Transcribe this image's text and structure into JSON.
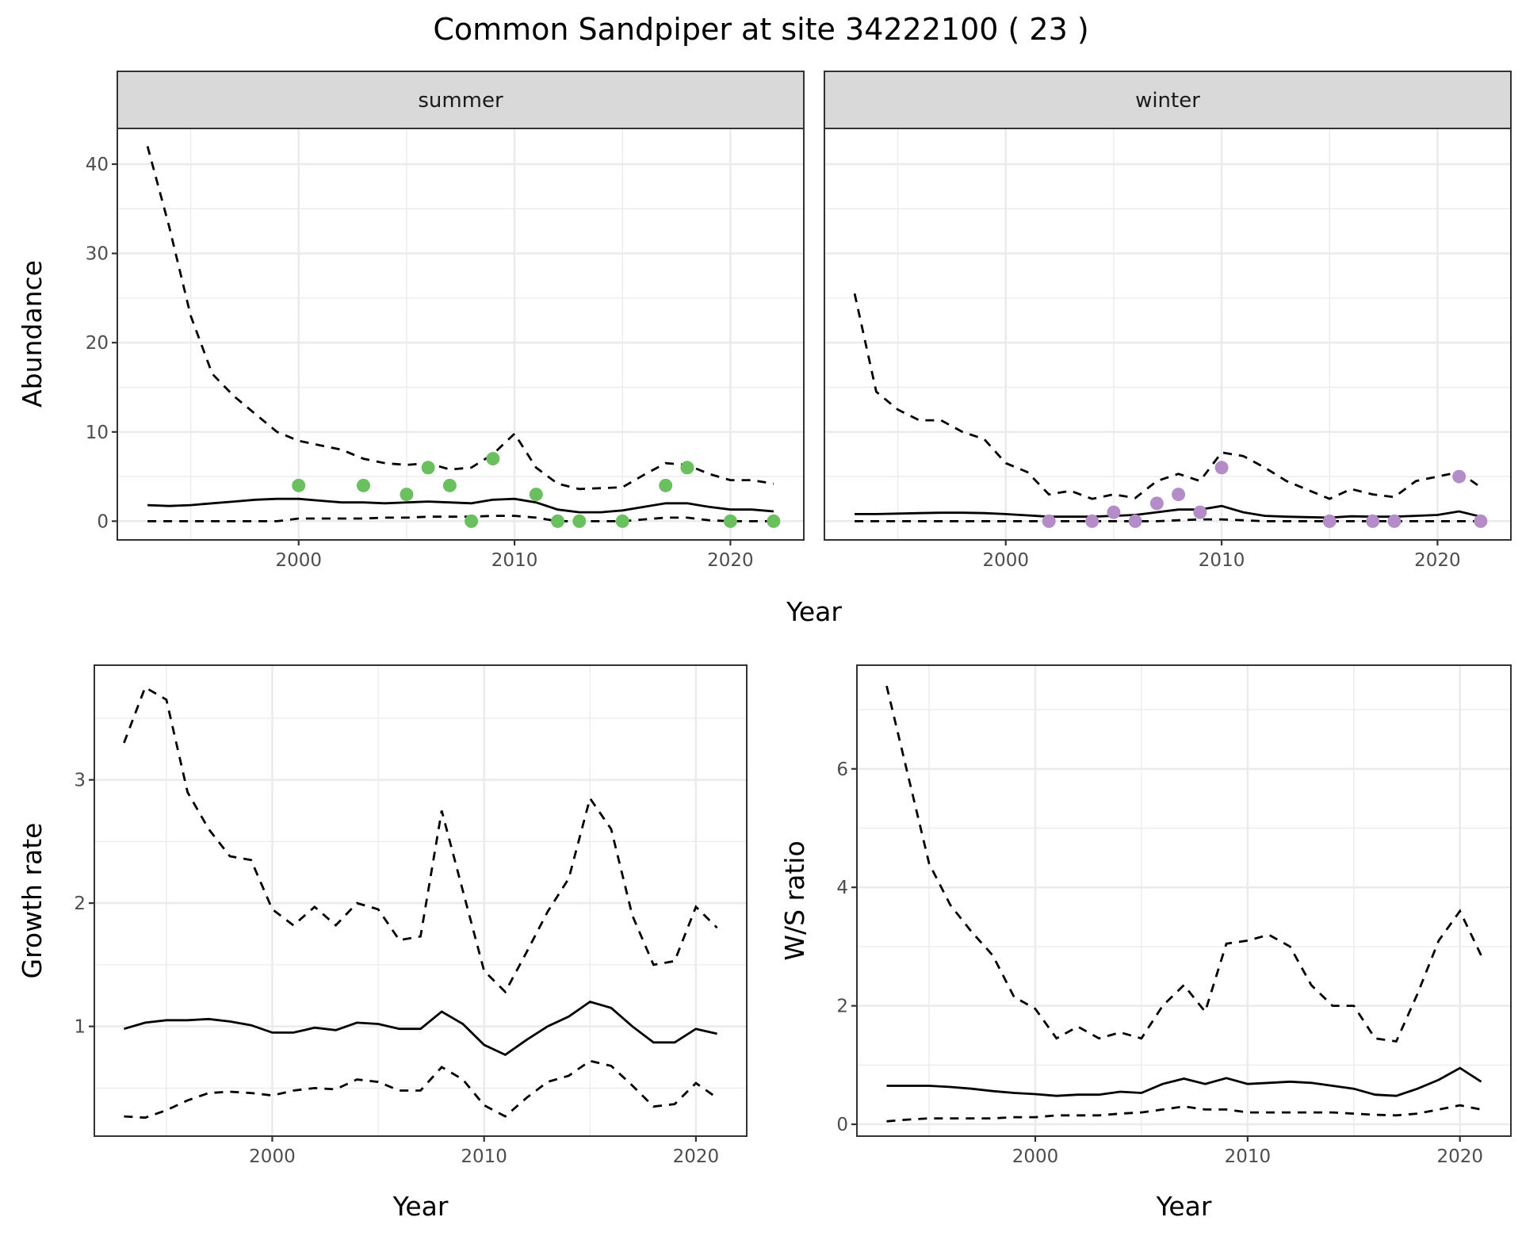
{
  "title": "Common Sandpiper at site 34222100 ( 23 )",
  "colors": {
    "summer": "#6abf5e",
    "winter": "#b48cc8",
    "line": "#000000",
    "grid": "#ebebeb",
    "strip": "#d9d9d9"
  },
  "chart_data": [
    {
      "type": "line",
      "facet": "summer",
      "xlabel": "Year",
      "ylabel": "Abundance",
      "xlim": [
        1991.6,
        2023.4
      ],
      "ylim": [
        -2.1,
        44
      ],
      "xticks": [
        2000,
        2010,
        2020
      ],
      "yticks": [
        0,
        10,
        20,
        30,
        40
      ],
      "grid": true,
      "x": [
        1993,
        1994,
        1995,
        1996,
        1997,
        1998,
        1999,
        2000,
        2001,
        2002,
        2003,
        2004,
        2005,
        2006,
        2007,
        2008,
        2009,
        2010,
        2011,
        2012,
        2013,
        2014,
        2015,
        2016,
        2017,
        2018,
        2019,
        2020,
        2021,
        2022
      ],
      "upper": [
        42,
        33,
        23,
        16.5,
        14,
        12,
        10,
        9,
        8.5,
        8,
        7,
        6.5,
        6.3,
        6.5,
        5.8,
        6,
        7.5,
        9.8,
        6,
        4.2,
        3.6,
        3.7,
        3.8,
        5.2,
        6.5,
        6.3,
        5.3,
        4.6,
        4.6,
        4.2
      ],
      "median": [
        1.8,
        1.7,
        1.8,
        2.0,
        2.2,
        2.4,
        2.5,
        2.5,
        2.3,
        2.1,
        2.1,
        2.0,
        2.1,
        2.2,
        2.1,
        2.0,
        2.4,
        2.5,
        2.1,
        1.3,
        1.0,
        1.0,
        1.2,
        1.6,
        2.0,
        2.0,
        1.6,
        1.3,
        1.3,
        1.1
      ],
      "lower": [
        0,
        0,
        0,
        0,
        0,
        0,
        0,
        0.3,
        0.3,
        0.3,
        0.3,
        0.4,
        0.4,
        0.5,
        0.5,
        0.5,
        0.6,
        0.6,
        0.4,
        0,
        0,
        0,
        0,
        0.2,
        0.4,
        0.4,
        0.1,
        0,
        0,
        0
      ],
      "points": {
        "x": [
          2000,
          2003,
          2005,
          2006,
          2007,
          2008,
          2009,
          2011,
          2012,
          2013,
          2015,
          2017,
          2018,
          2020,
          2022
        ],
        "y": [
          4,
          4,
          3,
          6,
          4,
          0,
          7,
          3,
          0,
          0,
          0,
          4,
          6,
          0,
          0
        ]
      }
    },
    {
      "type": "line",
      "facet": "winter",
      "xlabel": "Year",
      "ylabel": "Abundance",
      "xlim": [
        1991.6,
        2023.4
      ],
      "ylim": [
        -2.1,
        44
      ],
      "xticks": [
        2000,
        2010,
        2020
      ],
      "yticks": [
        0,
        10,
        20,
        30,
        40
      ],
      "grid": true,
      "x": [
        1993,
        1994,
        1995,
        1996,
        1997,
        1998,
        1999,
        2000,
        2001,
        2002,
        2003,
        2004,
        2005,
        2006,
        2007,
        2008,
        2009,
        2010,
        2011,
        2012,
        2013,
        2014,
        2015,
        2016,
        2017,
        2018,
        2019,
        2020,
        2021,
        2022
      ],
      "upper": [
        25.5,
        14.5,
        12.5,
        11.3,
        11.3,
        10,
        9.2,
        6.5,
        5.5,
        3,
        3.4,
        2.5,
        3,
        2.6,
        4.5,
        5.3,
        4.5,
        7.7,
        7.3,
        6,
        4.5,
        3.5,
        2.5,
        3.6,
        3,
        2.7,
        4.5,
        5,
        5.5,
        3.8
      ],
      "median": [
        0.8,
        0.8,
        0.85,
        0.9,
        0.95,
        0.95,
        0.9,
        0.8,
        0.65,
        0.5,
        0.5,
        0.5,
        0.6,
        0.7,
        1.0,
        1.3,
        1.3,
        1.7,
        1.0,
        0.6,
        0.5,
        0.45,
        0.4,
        0.55,
        0.5,
        0.5,
        0.6,
        0.7,
        1.1,
        0.5
      ],
      "lower": [
        0,
        0,
        0,
        0,
        0,
        0,
        0,
        0,
        0,
        0,
        0,
        0,
        0,
        0,
        0,
        0.1,
        0.2,
        0.2,
        0.1,
        0,
        0,
        0,
        0,
        0,
        0,
        0,
        0,
        0,
        0,
        0
      ],
      "points": {
        "x": [
          2002,
          2004,
          2005,
          2006,
          2007,
          2008,
          2009,
          2010,
          2015,
          2017,
          2018,
          2021,
          2022
        ],
        "y": [
          0,
          0,
          1,
          0,
          2,
          3,
          1,
          6,
          0,
          0,
          0,
          5,
          0
        ]
      }
    },
    {
      "type": "line",
      "xlabel": "Year",
      "ylabel": "Growth rate",
      "xlim": [
        1991.6,
        2022.4
      ],
      "ylim": [
        0.11,
        3.93
      ],
      "xticks": [
        2000,
        2010,
        2020
      ],
      "yticks": [
        1,
        2,
        3
      ],
      "grid": true,
      "x": [
        1993,
        1994,
        1995,
        1996,
        1997,
        1998,
        1999,
        2000,
        2001,
        2002,
        2003,
        2004,
        2005,
        2006,
        2007,
        2008,
        2009,
        2010,
        2011,
        2012,
        2013,
        2014,
        2015,
        2016,
        2017,
        2018,
        2019,
        2020,
        2021
      ],
      "upper": [
        3.3,
        3.75,
        3.65,
        2.9,
        2.6,
        2.38,
        2.35,
        1.95,
        1.82,
        1.97,
        1.82,
        2.0,
        1.95,
        1.7,
        1.73,
        2.75,
        2.1,
        1.45,
        1.28,
        1.6,
        1.93,
        2.2,
        2.85,
        2.6,
        1.9,
        1.5,
        1.53,
        1.97,
        1.8
      ],
      "median": [
        0.98,
        1.03,
        1.05,
        1.05,
        1.06,
        1.04,
        1.01,
        0.95,
        0.95,
        0.99,
        0.97,
        1.03,
        1.02,
        0.98,
        0.98,
        1.12,
        1.02,
        0.85,
        0.77,
        0.89,
        1.0,
        1.08,
        1.2,
        1.15,
        1.0,
        0.87,
        0.87,
        0.98,
        0.94
      ],
      "lower": [
        0.27,
        0.26,
        0.32,
        0.4,
        0.46,
        0.47,
        0.46,
        0.44,
        0.48,
        0.5,
        0.49,
        0.57,
        0.55,
        0.48,
        0.48,
        0.67,
        0.57,
        0.36,
        0.27,
        0.42,
        0.55,
        0.6,
        0.72,
        0.68,
        0.52,
        0.35,
        0.37,
        0.54,
        0.42
      ]
    },
    {
      "type": "line",
      "xlabel": "Year",
      "ylabel": "W/S ratio",
      "xlim": [
        1991.6,
        2022.4
      ],
      "ylim": [
        -0.2,
        7.75
      ],
      "xticks": [
        2000,
        2010,
        2020
      ],
      "yticks": [
        0,
        2,
        4,
        6
      ],
      "grid": true,
      "x": [
        1993,
        1994,
        1995,
        1996,
        1997,
        1998,
        1999,
        2000,
        2001,
        2002,
        2003,
        2004,
        2005,
        2006,
        2007,
        2008,
        2009,
        2010,
        2011,
        2012,
        2013,
        2014,
        2015,
        2016,
        2017,
        2018,
        2019,
        2020,
        2021
      ],
      "upper": [
        7.4,
        5.9,
        4.4,
        3.7,
        3.25,
        2.85,
        2.15,
        1.95,
        1.45,
        1.65,
        1.45,
        1.55,
        1.45,
        2.0,
        2.35,
        1.9,
        3.05,
        3.1,
        3.2,
        3.0,
        2.35,
        2.0,
        2.0,
        1.45,
        1.4,
        2.2,
        3.1,
        3.6,
        2.85
      ],
      "median": [
        0.65,
        0.65,
        0.65,
        0.63,
        0.6,
        0.56,
        0.53,
        0.51,
        0.48,
        0.5,
        0.5,
        0.55,
        0.53,
        0.68,
        0.77,
        0.68,
        0.78,
        0.68,
        0.7,
        0.72,
        0.7,
        0.65,
        0.6,
        0.5,
        0.48,
        0.6,
        0.75,
        0.95,
        0.72
      ],
      "lower": [
        0.05,
        0.08,
        0.1,
        0.1,
        0.1,
        0.1,
        0.12,
        0.12,
        0.15,
        0.15,
        0.15,
        0.18,
        0.2,
        0.25,
        0.3,
        0.25,
        0.25,
        0.2,
        0.2,
        0.2,
        0.2,
        0.2,
        0.18,
        0.16,
        0.15,
        0.18,
        0.25,
        0.32,
        0.25
      ]
    }
  ]
}
